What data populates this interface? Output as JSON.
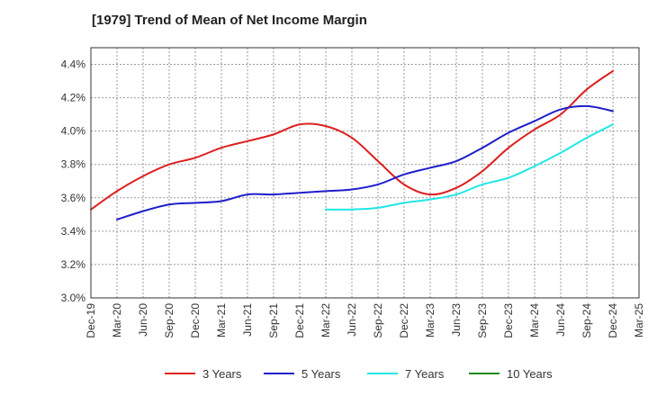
{
  "chart_data": {
    "type": "line",
    "title": "[1979]  Trend of Mean of Net Income Margin",
    "xlabel": "",
    "ylabel": "",
    "x_ticks": [
      "Dec-19",
      "Mar-20",
      "Jun-20",
      "Sep-20",
      "Dec-20",
      "Mar-21",
      "Jun-21",
      "Sep-21",
      "Dec-21",
      "Mar-22",
      "Jun-22",
      "Sep-22",
      "Dec-22",
      "Mar-23",
      "Jun-23",
      "Sep-23",
      "Dec-23",
      "Mar-24",
      "Jun-24",
      "Sep-24",
      "Dec-24",
      "Mar-25"
    ],
    "y_ticks": [
      "3.0%",
      "3.2%",
      "3.4%",
      "3.6%",
      "3.8%",
      "4.0%",
      "4.2%",
      "4.4%"
    ],
    "ylim": [
      3.0,
      4.5
    ],
    "y_unit": "%",
    "grid": true,
    "legend_position": "bottom",
    "series": [
      {
        "name": "3 Years",
        "color": "#dd1f1f",
        "x": [
          "Dec-19",
          "Mar-20",
          "Jun-20",
          "Sep-20",
          "Dec-20",
          "Mar-21",
          "Jun-21",
          "Sep-21",
          "Dec-21",
          "Mar-22",
          "Jun-22",
          "Sep-22",
          "Dec-22",
          "Mar-23",
          "Jun-23",
          "Sep-23",
          "Dec-23",
          "Mar-24",
          "Jun-24",
          "Sep-24",
          "Dec-24"
        ],
        "values": [
          3.53,
          3.64,
          3.73,
          3.8,
          3.84,
          3.9,
          3.94,
          3.98,
          4.04,
          4.03,
          3.96,
          3.82,
          3.68,
          3.62,
          3.66,
          3.76,
          3.9,
          4.01,
          4.1,
          4.25,
          4.36
        ]
      },
      {
        "name": "5 Years",
        "color": "#1f1fcc",
        "x": [
          "Mar-20",
          "Jun-20",
          "Sep-20",
          "Dec-20",
          "Mar-21",
          "Jun-21",
          "Sep-21",
          "Dec-21",
          "Mar-22",
          "Jun-22",
          "Sep-22",
          "Dec-22",
          "Mar-23",
          "Jun-23",
          "Sep-23",
          "Dec-23",
          "Mar-24",
          "Jun-24",
          "Sep-24",
          "Dec-24"
        ],
        "values": [
          3.47,
          3.52,
          3.56,
          3.57,
          3.58,
          3.62,
          3.62,
          3.63,
          3.64,
          3.65,
          3.68,
          3.74,
          3.78,
          3.82,
          3.9,
          3.99,
          4.06,
          4.13,
          4.15,
          4.12
        ]
      },
      {
        "name": "7 Years",
        "color": "#22e6e6",
        "x": [
          "Mar-22",
          "Jun-22",
          "Sep-22",
          "Dec-22",
          "Mar-23",
          "Jun-23",
          "Sep-23",
          "Dec-23",
          "Mar-24",
          "Jun-24",
          "Sep-24",
          "Dec-24"
        ],
        "values": [
          3.53,
          3.53,
          3.54,
          3.57,
          3.59,
          3.62,
          3.68,
          3.72,
          3.79,
          3.87,
          3.96,
          4.04
        ]
      },
      {
        "name": "10 Years",
        "color": "#1a8a1a",
        "x": [],
        "values": []
      }
    ]
  }
}
